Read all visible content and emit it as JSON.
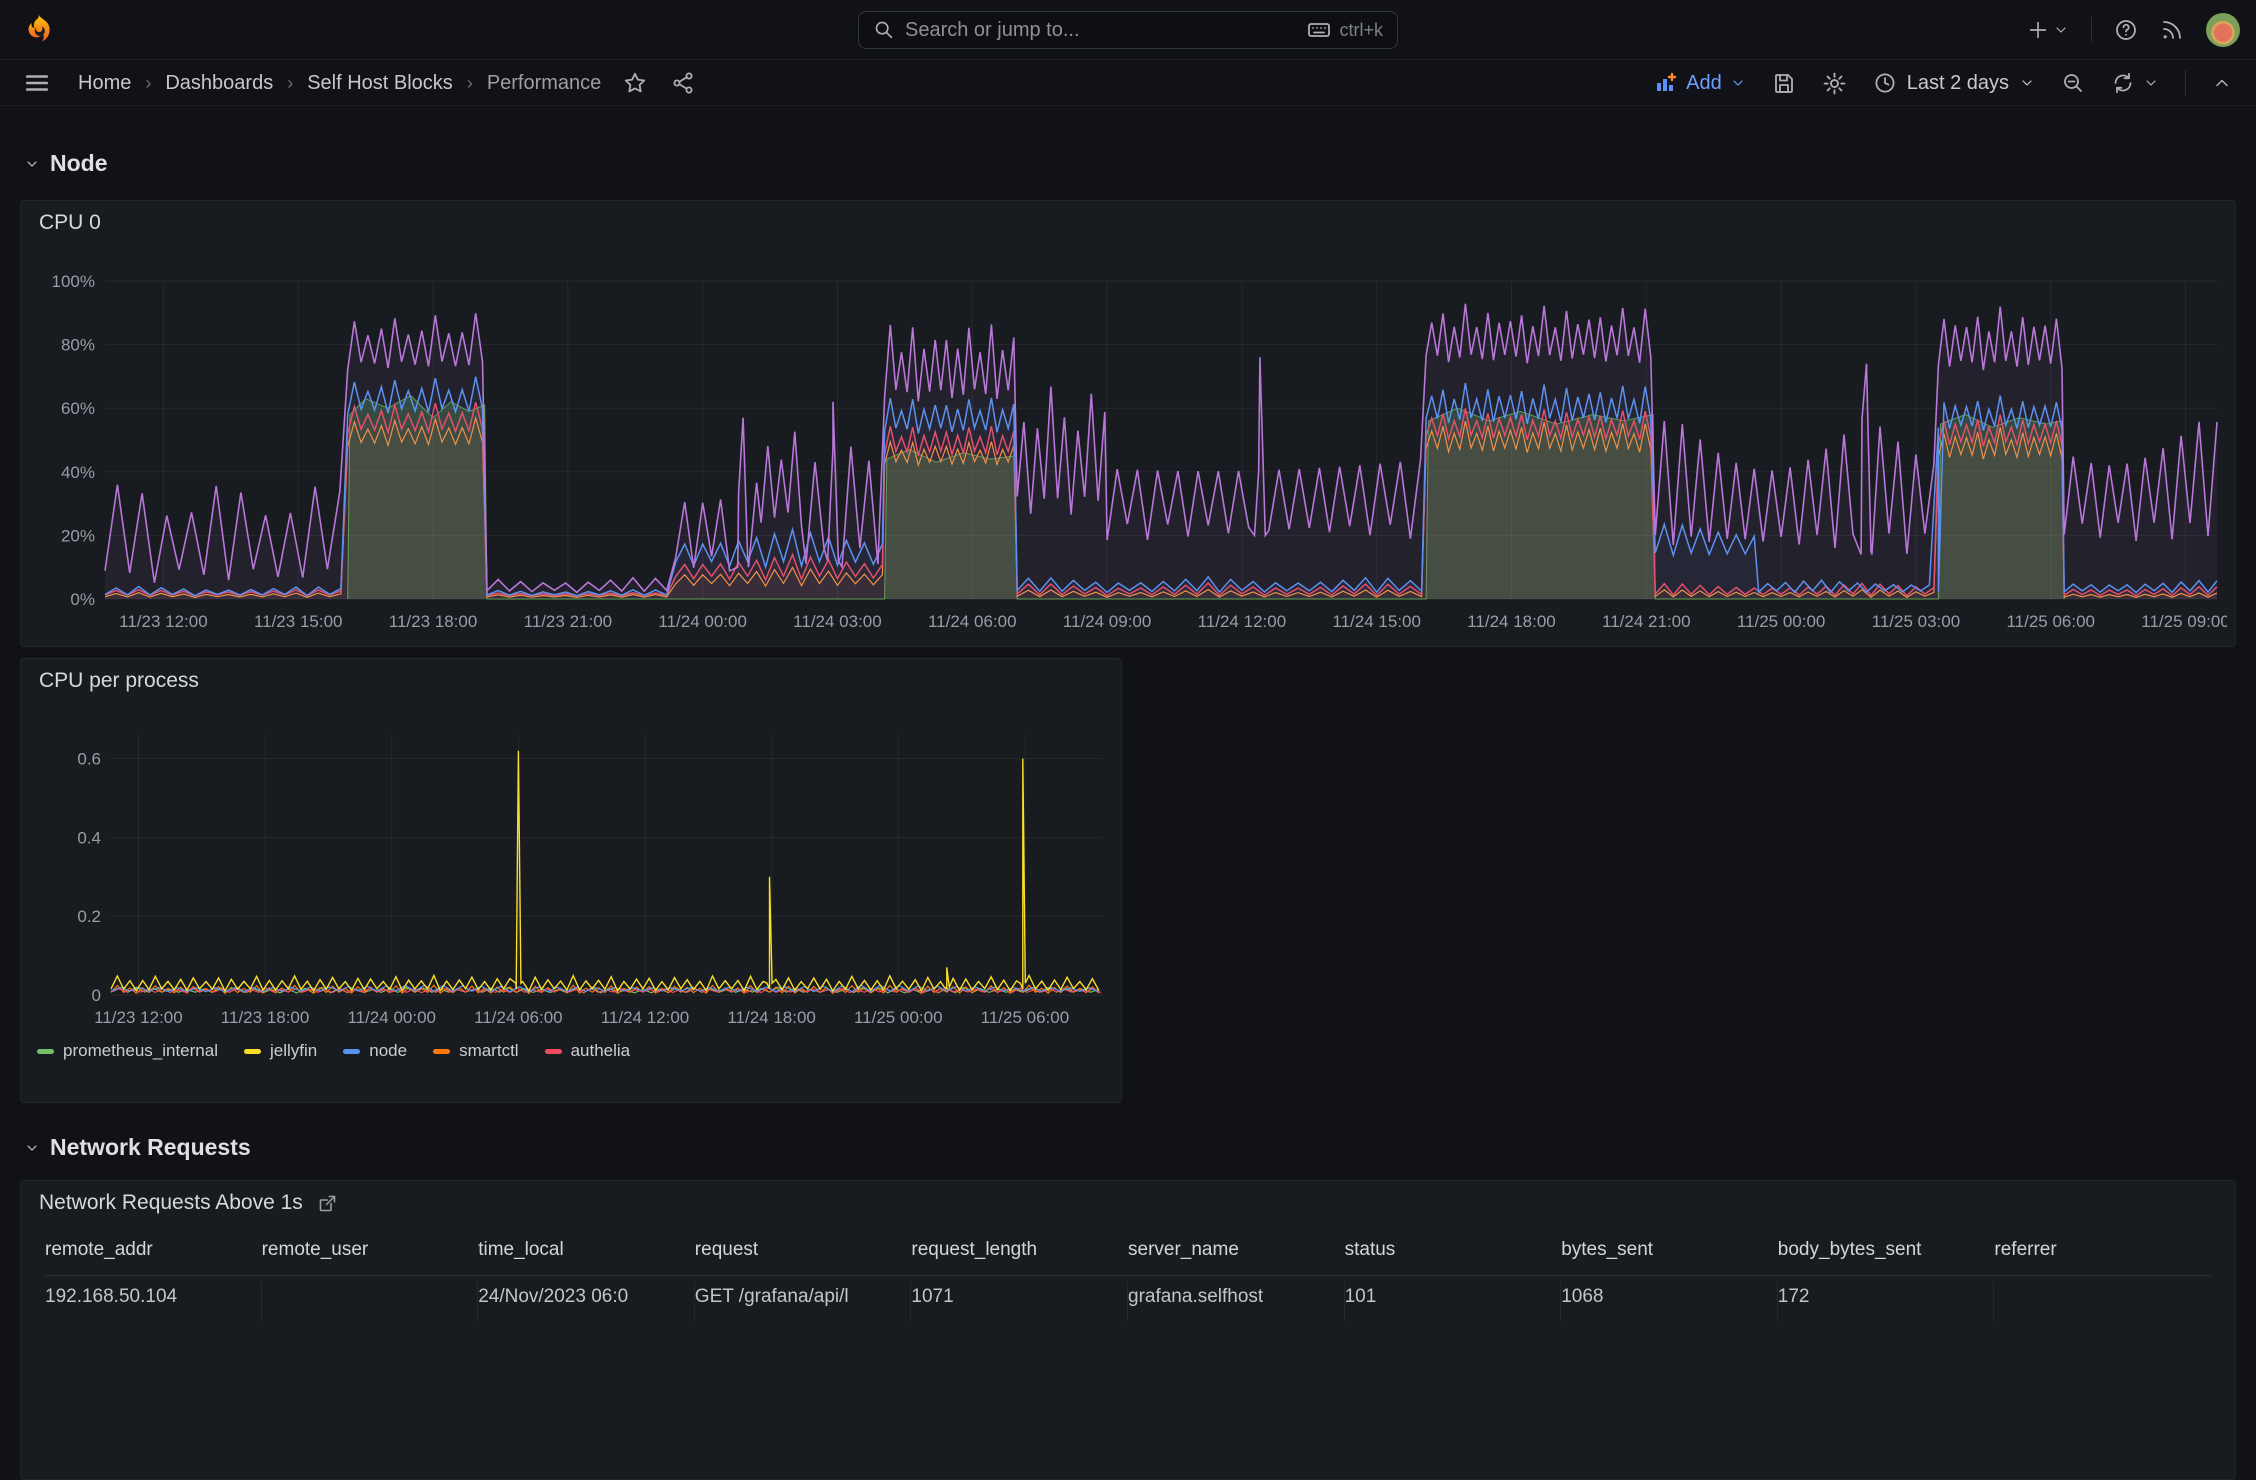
{
  "topnav": {
    "search": {
      "placeholder": "Search or jump to...",
      "shortcut": "ctrl+k"
    },
    "icons": [
      "grafana-logo",
      "search",
      "keyboard",
      "plus",
      "chevron-down",
      "help-circle",
      "news-rss",
      "avatar"
    ]
  },
  "breadcrumbs": [
    {
      "label": "Home"
    },
    {
      "label": "Dashboards"
    },
    {
      "label": "Self Host Blocks"
    },
    {
      "label": "Performance"
    }
  ],
  "toolbar": {
    "add_label": "Add",
    "time_range": "Last 2 days",
    "icons": [
      "menu",
      "star",
      "share-alt",
      "panel-add",
      "save",
      "gear",
      "clock",
      "zoom-out",
      "refresh",
      "collapse-up"
    ]
  },
  "sections": [
    {
      "title": "Node"
    },
    {
      "title": "Network Requests"
    }
  ],
  "panels": {
    "cpu0": {
      "title": "CPU 0"
    },
    "cpu_per_process": {
      "title": "CPU per process",
      "legend": [
        {
          "label": "prometheus_internal",
          "color": "#73BF69"
        },
        {
          "label": "jellyfin",
          "color": "#FADE2A"
        },
        {
          "label": "node",
          "color": "#5794F2"
        },
        {
          "label": "smartctl",
          "color": "#FF780A"
        },
        {
          "label": "authelia",
          "color": "#F2495C"
        }
      ]
    },
    "network_requests": {
      "title": "Network Requests Above 1s"
    }
  },
  "table": {
    "columns": [
      "remote_addr",
      "remote_user",
      "time_local",
      "request",
      "request_length",
      "server_name",
      "status",
      "bytes_sent",
      "body_bytes_sent",
      "referrer"
    ],
    "rows": [
      [
        "192.168.50.104",
        "",
        "24/Nov/2023 06:0",
        "GET /grafana/api/l",
        "1071",
        "grafana.selfhost",
        "101",
        "1068",
        "172",
        ""
      ]
    ]
  },
  "colors": {
    "accent_blue": "#6E9FFF",
    "panel_bg": "#181B1F",
    "page_bg": "#111217",
    "axis_text": "#9A9DA6",
    "series_purple": "#B877D9",
    "series_blue": "#5794F2",
    "series_red": "#F2495C",
    "series_orange": "#FF9830",
    "series_green": "#56A64B",
    "series_yellow": "#FADE2A"
  },
  "chart_data": [
    {
      "id": "cpu0",
      "type": "line",
      "title": "CPU 0",
      "x_min": 10.7,
      "x_max": 57.7,
      "y_min": 0,
      "y_max": 100,
      "grid": "rgba(204,204,220,0.08)",
      "axis_color": "#9A9DA6",
      "margins": {
        "l": 74,
        "r": 10,
        "t": 34,
        "b": 46
      },
      "x_ticks": [
        {
          "t": 12,
          "label": "11/23 12:00"
        },
        {
          "t": 15,
          "label": "11/23 15:00"
        },
        {
          "t": 18,
          "label": "11/23 18:00"
        },
        {
          "t": 21,
          "label": "11/23 21:00"
        },
        {
          "t": 24,
          "label": "11/24 00:00"
        },
        {
          "t": 27,
          "label": "11/24 03:00"
        },
        {
          "t": 30,
          "label": "11/24 06:00"
        },
        {
          "t": 33,
          "label": "11/24 09:00"
        },
        {
          "t": 36,
          "label": "11/24 12:00"
        },
        {
          "t": 39,
          "label": "11/24 15:00"
        },
        {
          "t": 42,
          "label": "11/24 18:00"
        },
        {
          "t": 45,
          "label": "11/24 21:00"
        },
        {
          "t": 48,
          "label": "11/25 00:00"
        },
        {
          "t": 51,
          "label": "11/25 03:00"
        },
        {
          "t": 54,
          "label": "11/25 06:00"
        },
        {
          "t": 57,
          "label": "11/25 09:00"
        }
      ],
      "y_ticks": [
        {
          "v": 0,
          "label": "0%"
        },
        {
          "v": 20,
          "label": "20%"
        },
        {
          "v": 40,
          "label": "40%"
        },
        {
          "v": 60,
          "label": "60%"
        },
        {
          "v": 80,
          "label": "80%"
        },
        {
          "v": 100,
          "label": "100%"
        }
      ],
      "series": [
        {
          "name": "green-area",
          "color": "#56A64B",
          "width": 1,
          "fill": 0.3,
          "points": [
            [
              16.1,
              0
            ],
            [
              16.15,
              58
            ],
            [
              16.5,
              63
            ],
            [
              17.0,
              60
            ],
            [
              17.5,
              64
            ],
            [
              18.0,
              57
            ],
            [
              18.4,
              62
            ],
            [
              18.8,
              59
            ],
            [
              19.15,
              61
            ],
            [
              19.2,
              0
            ],
            [
              28.05,
              0
            ],
            [
              28.1,
              44
            ],
            [
              28.6,
              47
            ],
            [
              29.2,
              43
            ],
            [
              29.8,
              46
            ],
            [
              30.4,
              44
            ],
            [
              30.95,
              45
            ],
            [
              31.0,
              0
            ],
            [
              40.1,
              0
            ],
            [
              40.15,
              56
            ],
            [
              40.8,
              60
            ],
            [
              41.5,
              56
            ],
            [
              42.2,
              59
            ],
            [
              43.0,
              55
            ],
            [
              43.8,
              58
            ],
            [
              44.5,
              56
            ],
            [
              45.15,
              58
            ],
            [
              45.2,
              0
            ],
            [
              51.5,
              0
            ],
            [
              51.55,
              55
            ],
            [
              52.1,
              58
            ],
            [
              52.7,
              54
            ],
            [
              53.3,
              57
            ],
            [
              53.9,
              55
            ],
            [
              54.25,
              56
            ],
            [
              54.3,
              0
            ]
          ]
        },
        {
          "name": "orange-line",
          "color": "#FF9830",
          "width": 1.2,
          "fill": 0.05,
          "segments": [
            {
              "t0": 10.7,
              "t1": 16.1,
              "lo": 0.5,
              "hi": 2,
              "cycle": 0.5
            },
            {
              "t0": 16.1,
              "t1": 19.2,
              "lo": 48,
              "hi": 57,
              "cycle": 0.3
            },
            {
              "t0": 19.2,
              "t1": 23.4,
              "lo": 0.5,
              "hi": 1.5,
              "cycle": 0.5
            },
            {
              "t0": 23.4,
              "t1": 28.05,
              "lo": 4,
              "hi": 10,
              "cycle": 0.4
            },
            {
              "t0": 28.05,
              "t1": 31.0,
              "lo": 42,
              "hi": 50,
              "cycle": 0.25
            },
            {
              "t0": 31.0,
              "t1": 40.1,
              "lo": 0.5,
              "hi": 3,
              "cycle": 0.5
            },
            {
              "t0": 40.1,
              "t1": 45.2,
              "lo": 46,
              "hi": 56,
              "cycle": 0.25
            },
            {
              "t0": 45.2,
              "t1": 51.5,
              "lo": 0.5,
              "hi": 3,
              "cycle": 0.4
            },
            {
              "t0": 51.5,
              "t1": 54.3,
              "lo": 44,
              "hi": 54,
              "cycle": 0.25
            },
            {
              "t0": 54.3,
              "t1": 57.7,
              "lo": 0.5,
              "hi": 2,
              "cycle": 0.4
            }
          ]
        },
        {
          "name": "red-line",
          "color": "#F2495C",
          "width": 1.5,
          "fill": 0.05,
          "segments": [
            {
              "t0": 10.7,
              "t1": 16.1,
              "lo": 1,
              "hi": 3,
              "cycle": 0.5
            },
            {
              "t0": 16.1,
              "t1": 19.2,
              "lo": 52,
              "hi": 62,
              "cycle": 0.3
            },
            {
              "t0": 19.2,
              "t1": 23.4,
              "lo": 1,
              "hi": 2,
              "cycle": 0.5
            },
            {
              "t0": 23.4,
              "t1": 28.05,
              "lo": 6,
              "hi": 14,
              "cycle": 0.4
            },
            {
              "t0": 28.05,
              "t1": 31.0,
              "lo": 45,
              "hi": 55,
              "cycle": 0.25
            },
            {
              "t0": 31.0,
              "t1": 40.1,
              "lo": 1,
              "hi": 5,
              "cycle": 0.5
            },
            {
              "t0": 40.1,
              "t1": 45.2,
              "lo": 50,
              "hi": 60,
              "cycle": 0.25
            },
            {
              "t0": 45.2,
              "t1": 51.5,
              "lo": 1,
              "hi": 5,
              "cycle": 0.4
            },
            {
              "t0": 51.5,
              "t1": 54.3,
              "lo": 48,
              "hi": 58,
              "cycle": 0.25
            },
            {
              "t0": 54.3,
              "t1": 57.7,
              "lo": 1,
              "hi": 4,
              "cycle": 0.4
            }
          ]
        },
        {
          "name": "blue-line",
          "color": "#5794F2",
          "width": 1.5,
          "fill": 0.06,
          "segments": [
            {
              "t0": 10.7,
              "t1": 16.1,
              "lo": 1,
              "hi": 4,
              "cycle": 0.5
            },
            {
              "t0": 16.1,
              "t1": 19.2,
              "lo": 58,
              "hi": 70,
              "cycle": 0.3
            },
            {
              "t0": 19.2,
              "t1": 23.4,
              "lo": 1,
              "hi": 3,
              "cycle": 0.5
            },
            {
              "t0": 23.4,
              "t1": 28.05,
              "lo": 10,
              "hi": 22,
              "cycle": 0.4
            },
            {
              "t0": 28.05,
              "t1": 31.0,
              "lo": 52,
              "hi": 64,
              "cycle": 0.25
            },
            {
              "t0": 31.0,
              "t1": 40.1,
              "lo": 2,
              "hi": 7,
              "cycle": 0.5
            },
            {
              "t0": 40.1,
              "t1": 45.2,
              "lo": 55,
              "hi": 68,
              "cycle": 0.25
            },
            {
              "t0": 45.2,
              "t1": 47.5,
              "lo": 13,
              "hi": 24,
              "cycle": 0.4
            },
            {
              "t0": 47.5,
              "t1": 51.5,
              "lo": 2,
              "hi": 6,
              "cycle": 0.4
            },
            {
              "t0": 51.5,
              "t1": 54.3,
              "lo": 53,
              "hi": 64,
              "cycle": 0.25
            },
            {
              "t0": 54.3,
              "t1": 57.7,
              "lo": 2,
              "hi": 6,
              "cycle": 0.4
            }
          ]
        },
        {
          "name": "purple-line",
          "color": "#B877D9",
          "width": 1.6,
          "fill": 0.07,
          "segments": [
            {
              "t0": 10.7,
              "t1": 16.1,
              "lo": 4,
              "hi": 40,
              "cycle": 0.55
            },
            {
              "t0": 16.1,
              "t1": 19.2,
              "lo": 72,
              "hi": 90,
              "cycle": 0.3
            },
            {
              "t0": 19.2,
              "t1": 23.4,
              "lo": 2,
              "hi": 7,
              "cycle": 0.5
            },
            {
              "t0": 23.4,
              "t1": 25.3,
              "lo": 8,
              "hi": 45,
              "cycle": 0.4
            },
            {
              "t0": 25.3,
              "t1": 26.3,
              "lo": 22,
              "hi": 58,
              "cycle": 0.3
            },
            {
              "t0": 26.3,
              "t1": 28.05,
              "lo": 10,
              "hi": 50,
              "cycle": 0.4
            },
            {
              "t0": 28.05,
              "t1": 31.0,
              "lo": 62,
              "hi": 88,
              "cycle": 0.25
            },
            {
              "t0": 31.0,
              "t1": 33.0,
              "lo": 26,
              "hi": 70,
              "cycle": 0.3
            },
            {
              "t0": 33.0,
              "t1": 40.1,
              "lo": 18,
              "hi": 55,
              "cycle": 0.45
            },
            {
              "t0": 40.1,
              "t1": 45.2,
              "lo": 74,
              "hi": 93,
              "cycle": 0.25
            },
            {
              "t0": 45.2,
              "t1": 51.5,
              "lo": 14,
              "hi": 58,
              "cycle": 0.4
            },
            {
              "t0": 51.5,
              "t1": 54.3,
              "lo": 72,
              "hi": 92,
              "cycle": 0.25
            },
            {
              "t0": 54.3,
              "t1": 57.7,
              "lo": 18,
              "hi": 58,
              "cycle": 0.4
            }
          ],
          "spikes": [
            {
              "t": 24.9,
              "v": 57,
              "b": 10
            },
            {
              "t": 26.9,
              "v": 62,
              "b": 12
            },
            {
              "t": 36.4,
              "v": 76,
              "b": 20
            },
            {
              "t": 49.9,
              "v": 74,
              "b": 14
            }
          ]
        }
      ]
    },
    {
      "id": "cpu_pp",
      "type": "line",
      "title": "CPU per process",
      "x_min": 10.7,
      "x_max": 57.7,
      "y_min": 0,
      "y_max": 0.66,
      "grid": "rgba(204,204,220,0.08)",
      "axis_color": "#9A9DA6",
      "margins": {
        "l": 80,
        "r": 10,
        "t": 30,
        "b": 40
      },
      "x_ticks": [
        {
          "t": 12,
          "label": "11/23 12:00"
        },
        {
          "t": 18,
          "label": "11/23 18:00"
        },
        {
          "t": 24,
          "label": "11/24 00:00"
        },
        {
          "t": 30,
          "label": "11/24 06:00"
        },
        {
          "t": 36,
          "label": "11/24 12:00"
        },
        {
          "t": 42,
          "label": "11/24 18:00"
        },
        {
          "t": 48,
          "label": "11/25 00:00"
        },
        {
          "t": 54,
          "label": "11/25 06:00"
        }
      ],
      "y_ticks": [
        {
          "v": 0,
          "label": "0"
        },
        {
          "v": 0.2,
          "label": "0.2"
        },
        {
          "v": 0.4,
          "label": "0.4"
        },
        {
          "v": 0.6,
          "label": "0.6"
        }
      ],
      "series": [
        {
          "name": "prometheus_internal",
          "color": "#73BF69",
          "width": 1.2,
          "segments": [
            {
              "t0": 10.7,
              "t1": 57.7,
              "lo": 0.005,
              "hi": 0.02,
              "cycle": 0.8
            }
          ]
        },
        {
          "name": "smartctl",
          "color": "#FF780A",
          "width": 1.2,
          "segments": [
            {
              "t0": 10.7,
              "t1": 57.7,
              "lo": 0.004,
              "hi": 0.025,
              "cycle": 0.6
            }
          ]
        },
        {
          "name": "authelia",
          "color": "#F2495C",
          "width": 1.2,
          "segments": [
            {
              "t0": 10.7,
              "t1": 57.7,
              "lo": 0.006,
              "hi": 0.018,
              "cycle": 0.7
            }
          ]
        },
        {
          "name": "node",
          "color": "#5794F2",
          "width": 1.2,
          "segments": [
            {
              "t0": 10.7,
              "t1": 57.7,
              "lo": 0.008,
              "hi": 0.025,
              "cycle": 0.9
            }
          ]
        },
        {
          "name": "jellyfin",
          "color": "#FADE2A",
          "width": 1.4,
          "segments": [
            {
              "t0": 10.7,
              "t1": 57.7,
              "lo": 0.01,
              "hi": 0.05,
              "cycle": 0.6
            }
          ],
          "spikes": [
            {
              "t": 30.0,
              "v": 0.62,
              "b": 0.03
            },
            {
              "t": 41.9,
              "v": 0.3,
              "b": 0.03
            },
            {
              "t": 50.3,
              "v": 0.07,
              "b": 0.02
            },
            {
              "t": 53.9,
              "v": 0.6,
              "b": 0.03
            }
          ]
        }
      ]
    }
  ]
}
